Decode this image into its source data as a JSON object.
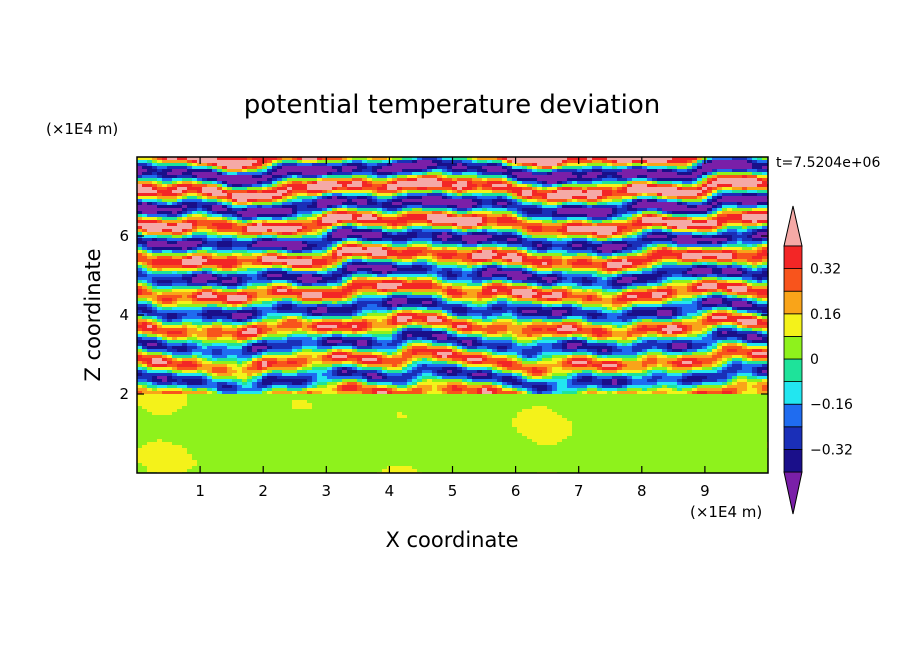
{
  "chart_data": {
    "type": "heatmap",
    "title": "potential temperature deviation",
    "xlabel": "X coordinate",
    "ylabel": "Z coordinate",
    "x_unit": "(×1E4 m)",
    "y_unit": "(×1E4 m)",
    "time_label": "t=7.5204e+06",
    "xlim": [
      0,
      10
    ],
    "ylim": [
      0,
      8
    ],
    "x_ticks": [
      1,
      2,
      3,
      4,
      5,
      6,
      7,
      8,
      9
    ],
    "y_ticks": [
      2,
      4,
      6
    ],
    "colorbar": {
      "levels": [
        -0.4,
        -0.32,
        -0.24,
        -0.16,
        -0.08,
        0,
        0.08,
        0.16,
        0.24,
        0.32,
        0.4
      ],
      "tick_values": [
        0.32,
        0.16,
        0,
        -0.16,
        -0.32
      ],
      "tick_labels": [
        "0.32",
        "0.16",
        "0",
        "−0.16",
        "−0.32"
      ],
      "colors": [
        "#7a1fa8",
        "#1a0f8a",
        "#1a2fb8",
        "#1f6cf0",
        "#22e6f0",
        "#1ee39a",
        "#8ef21c",
        "#f4f21a",
        "#f9a419",
        "#f8541c",
        "#f32626",
        "#f5a9a6"
      ],
      "extend": "both"
    },
    "field_description": {
      "lower_layer_z_below": 2,
      "lower_layer_values_range": [
        0,
        0.08
      ],
      "upper_layer_z_above": 2,
      "upper_layer_pattern": "horizontally stratified alternating bands spanning the full range"
    }
  }
}
